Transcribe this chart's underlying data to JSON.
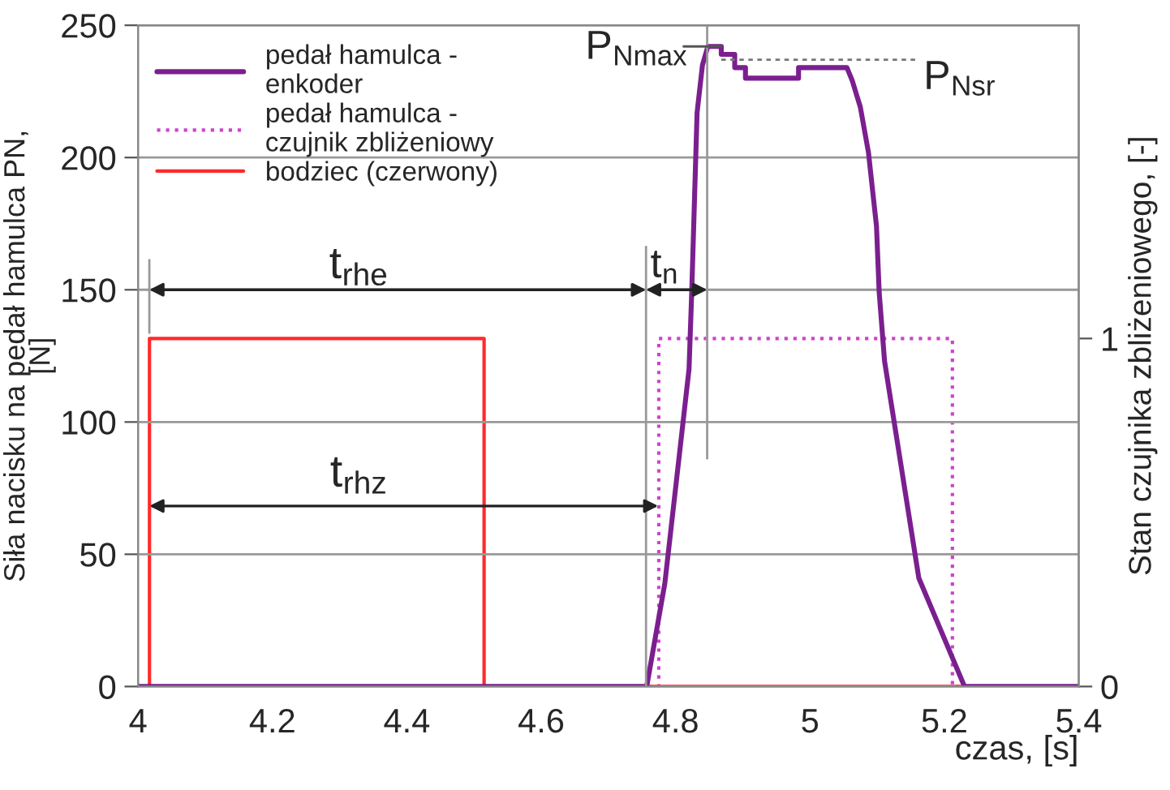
{
  "chart_data": {
    "type": "line",
    "xlabel": "czas, [s]",
    "ylabel": "Siła nacisku na pedał hamulca PN,\n[N]",
    "y2label": "Stan czujnika zbliżeniowego, [-]",
    "xlim": [
      4,
      5.4
    ],
    "xticks": [
      4,
      4.2,
      4.4,
      4.6,
      4.8,
      5,
      5.2,
      5.4
    ],
    "ylim": [
      0,
      250
    ],
    "yticks": [
      0,
      50,
      100,
      150,
      200,
      250
    ],
    "y2lim": [
      0,
      1.9
    ],
    "y2ticks": [
      0,
      1
    ],
    "grid": "y",
    "legend": "top left",
    "series": [
      {
        "name": "pedał hamulca - enkoder",
        "color": "#7b1f8f",
        "line_style": "solid",
        "x": [
          4,
          4.757,
          4.784,
          4.82,
          4.824,
          4.832,
          4.84,
          4.848,
          4.868,
          4.868,
          4.888,
          4.888,
          4.904,
          4.904,
          4.983,
          4.983,
          5.055,
          5.063,
          5.075,
          5.087,
          5.099,
          5.103,
          5.111,
          5.162,
          5.23,
          5.4
        ],
        "values": [
          0,
          0,
          39,
          120,
          149,
          217,
          235,
          242,
          242,
          239,
          239,
          234,
          234,
          230,
          230,
          234,
          234,
          229,
          219,
          202,
          174,
          149,
          123,
          41,
          0,
          0
        ]
      },
      {
        "name": "pedał hamulca - czujnik zbliżeniowy",
        "type": "step",
        "axis": "y2",
        "color": "#cc44cc",
        "line_style": "dotted",
        "x": [
          4,
          4.775,
          5.212,
          5.4
        ],
        "values": [
          0,
          1,
          0,
          0
        ]
      },
      {
        "name": "bodziec (czerwony)",
        "type": "step",
        "axis": "y2",
        "color": "#ff2a2a",
        "line_style": "solid",
        "x": [
          4,
          4.017,
          4.515,
          5.4
        ],
        "values": [
          0,
          1,
          0,
          0
        ]
      }
    ],
    "ref_lines": [
      {
        "axis": "y",
        "value": 237,
        "label": "P$_{Nsr}$",
        "color": "#777777",
        "line_style": "dotted"
      }
    ],
    "annotations": [
      "P$_{Nmax}$",
      "t$_{rhe}$",
      "t$_{n}$",
      "t$_{rhz}$"
    ]
  }
}
